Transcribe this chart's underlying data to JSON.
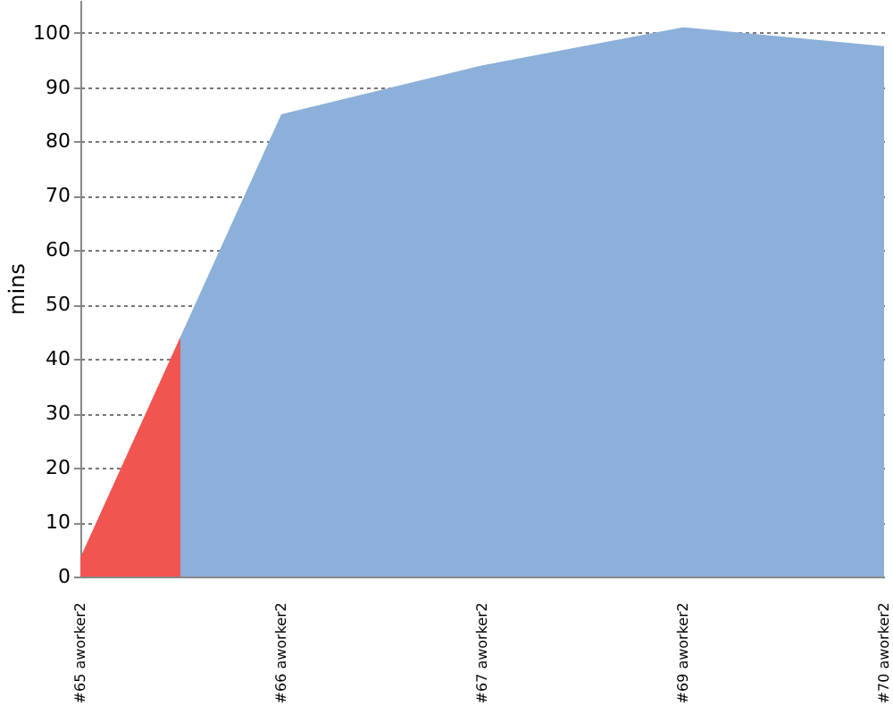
{
  "chart_data": {
    "type": "area",
    "categories": [
      "#65 aworker2",
      "#66 aworker2",
      "#67 aworker2",
      "#69 aworker2",
      "#70 aworker2"
    ],
    "values": [
      3.5,
      85,
      94,
      101,
      97.5
    ],
    "colors": [
      "#f25450",
      "#8cb0d9",
      "#8cb0d9",
      "#8cb0d9",
      "#8cb0d9"
    ],
    "ylabel": "mins",
    "ylim": [
      0,
      106
    ],
    "yticks": [
      0,
      10,
      20,
      30,
      40,
      50,
      60,
      70,
      80,
      90,
      100
    ],
    "grid": "y"
  }
}
